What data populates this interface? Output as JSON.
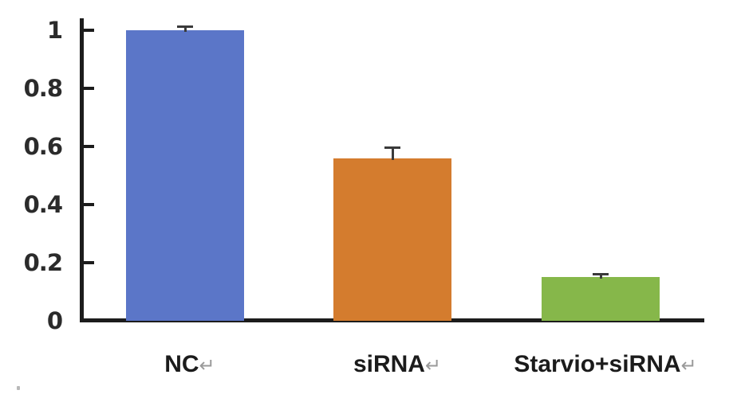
{
  "chart_data": {
    "type": "bar",
    "title": "",
    "xlabel": "",
    "ylabel": "",
    "categories": [
      "NC",
      "siRNA",
      "Starvio+siRNA"
    ],
    "values": [
      1.0,
      0.56,
      0.15
    ],
    "error_bars": [
      0.01,
      0.035,
      0.01
    ],
    "ylim": [
      0,
      1
    ],
    "yticks": [
      1,
      0.8,
      0.6,
      0.4,
      0.2,
      0
    ],
    "ytick_labels": [
      "1",
      "0.8",
      "0.6",
      "0.4",
      "0.2",
      "0"
    ],
    "bar_colors": [
      "#5b76c8",
      "#d47c2e",
      "#86b74a"
    ],
    "error_color": "#3a3a3a",
    "axis_color": "#1c1c1c",
    "grid": false,
    "legend": null,
    "category_return_mark": "↵"
  }
}
